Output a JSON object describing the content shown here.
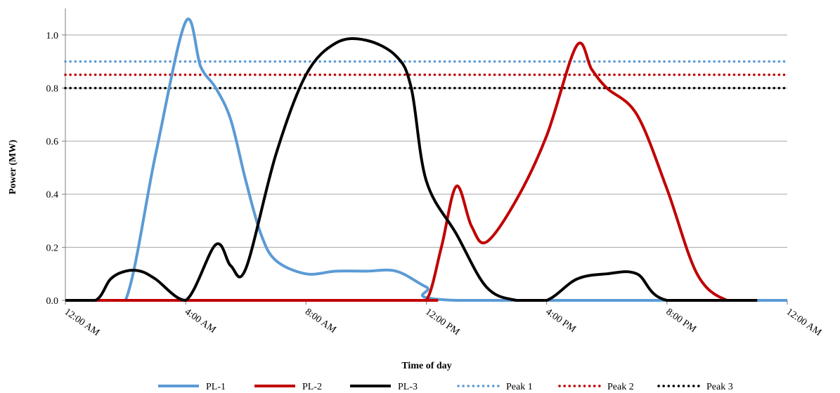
{
  "chart_data": {
    "type": "line",
    "title": "",
    "xlabel": "Time of day",
    "ylabel": "Power (MW)",
    "x_unit": "hours since 12:00 AM",
    "xlim": [
      0,
      24
    ],
    "ylim": [
      0,
      1.0
    ],
    "x_tick_labels": [
      "12:00 AM",
      "4:00 AM",
      "8:00 AM",
      "12:00 PM",
      "4:00 PM",
      "8:00 PM",
      "12:00 AM"
    ],
    "y_tick_labels": [
      "0.0",
      "0.2",
      "0.4",
      "0.6",
      "0.8",
      "1.0"
    ],
    "grid": "horizontal",
    "legend_position": "bottom",
    "series": [
      {
        "name": "PL-1",
        "style": "solid",
        "color": "#5b9bd5",
        "points": [
          [
            0,
            0
          ],
          [
            1,
            0
          ],
          [
            2,
            0
          ],
          [
            3,
            0.55
          ],
          [
            4,
            1.05
          ],
          [
            4.5,
            0.88
          ],
          [
            5,
            0.8
          ],
          [
            5.5,
            0.68
          ],
          [
            6,
            0.45
          ],
          [
            6.5,
            0.25
          ],
          [
            7,
            0.15
          ],
          [
            8,
            0.1
          ],
          [
            9,
            0.11
          ],
          [
            10,
            0.11
          ],
          [
            11,
            0.11
          ],
          [
            12,
            0.05
          ],
          [
            13,
            0
          ],
          [
            24,
            0
          ]
        ]
      },
      {
        "name": "PL-2",
        "style": "solid",
        "color": "#c00000",
        "points": [
          [
            0,
            0
          ],
          [
            11.3,
            0
          ],
          [
            12,
            0
          ],
          [
            12.5,
            0.2
          ],
          [
            13,
            0.43
          ],
          [
            13.5,
            0.28
          ],
          [
            14,
            0.22
          ],
          [
            15,
            0.38
          ],
          [
            16,
            0.62
          ],
          [
            17,
            0.96
          ],
          [
            17.5,
            0.87
          ],
          [
            18,
            0.8
          ],
          [
            19,
            0.7
          ],
          [
            20,
            0.42
          ],
          [
            21,
            0.1
          ],
          [
            22,
            0
          ],
          [
            23,
            0
          ]
        ]
      },
      {
        "name": "PL-3",
        "style": "solid",
        "color": "#000000",
        "points": [
          [
            0,
            0
          ],
          [
            1,
            0
          ],
          [
            1.5,
            0.08
          ],
          [
            2,
            0.11
          ],
          [
            2.5,
            0.11
          ],
          [
            3,
            0.08
          ],
          [
            4,
            0
          ],
          [
            5,
            0.21
          ],
          [
            5.5,
            0.13
          ],
          [
            6,
            0.12
          ],
          [
            7,
            0.55
          ],
          [
            8,
            0.85
          ],
          [
            9,
            0.97
          ],
          [
            10,
            0.98
          ],
          [
            11,
            0.92
          ],
          [
            11.5,
            0.8
          ],
          [
            12,
            0.45
          ],
          [
            13,
            0.25
          ],
          [
            14,
            0.05
          ],
          [
            15,
            0
          ],
          [
            16,
            0
          ],
          [
            17,
            0.08
          ],
          [
            18,
            0.1
          ],
          [
            19,
            0.1
          ],
          [
            20,
            0
          ],
          [
            23,
            0
          ]
        ]
      },
      {
        "name": "Peak 1",
        "style": "dotted",
        "color": "#5b9bd5",
        "points": [
          [
            0,
            0.9
          ],
          [
            24,
            0.9
          ]
        ]
      },
      {
        "name": "Peak 2",
        "style": "dotted",
        "color": "#c00000",
        "points": [
          [
            0,
            0.85
          ],
          [
            24,
            0.85
          ]
        ]
      },
      {
        "name": "Peak 3",
        "style": "dotted",
        "color": "#000000",
        "points": [
          [
            0,
            0.8
          ],
          [
            24,
            0.8
          ]
        ]
      }
    ]
  }
}
